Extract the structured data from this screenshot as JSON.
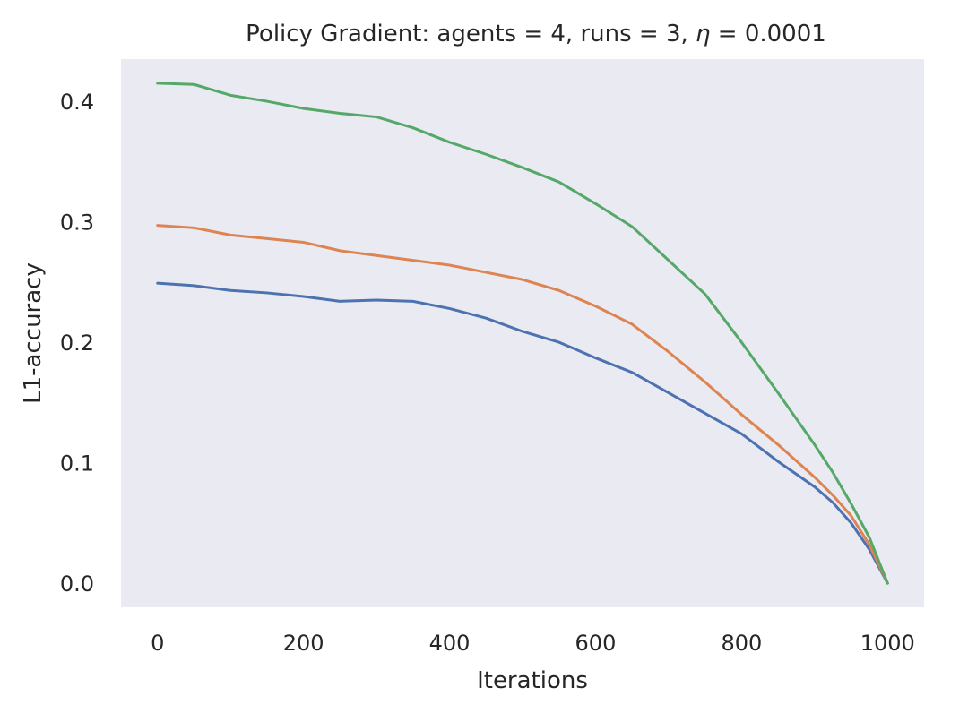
{
  "chart_data": {
    "type": "line",
    "title_parts": [
      "Policy Gradient: agents = 4, runs = 3, ",
      "η",
      " = 0.0001"
    ],
    "xlabel": "Iterations",
    "ylabel": "L1-accuracy",
    "xlim": [
      -50,
      1050
    ],
    "ylim": [
      -0.02,
      0.435
    ],
    "grid": false,
    "background": "#eaeaf2",
    "x_ticks": [
      0,
      200,
      400,
      600,
      800,
      1000
    ],
    "x_tick_labels": [
      "0",
      "200",
      "400",
      "600",
      "800",
      "1000"
    ],
    "y_ticks": [
      0.0,
      0.1,
      0.2,
      0.3,
      0.4
    ],
    "y_tick_labels": [
      "0.0",
      "0.1",
      "0.2",
      "0.3",
      "0.4"
    ],
    "series": [
      {
        "color": "#4c72b0",
        "x": [
          0,
          50,
          100,
          150,
          200,
          250,
          300,
          350,
          400,
          450,
          500,
          550,
          600,
          650,
          700,
          750,
          800,
          850,
          900,
          925,
          950,
          975,
          1000
        ],
        "values": [
          0.249,
          0.247,
          0.243,
          0.241,
          0.238,
          0.234,
          0.235,
          0.234,
          0.228,
          0.22,
          0.209,
          0.2,
          0.187,
          0.175,
          0.158,
          0.141,
          0.124,
          0.101,
          0.08,
          0.067,
          0.05,
          0.028,
          0.0
        ]
      },
      {
        "color": "#dd8452",
        "x": [
          0,
          50,
          100,
          150,
          200,
          250,
          300,
          350,
          400,
          450,
          500,
          550,
          600,
          650,
          700,
          750,
          800,
          850,
          900,
          925,
          950,
          975,
          1000
        ],
        "values": [
          0.297,
          0.295,
          0.289,
          0.286,
          0.283,
          0.276,
          0.272,
          0.268,
          0.264,
          0.258,
          0.252,
          0.243,
          0.23,
          0.215,
          0.192,
          0.167,
          0.14,
          0.115,
          0.088,
          0.073,
          0.056,
          0.032,
          0.0
        ]
      },
      {
        "color": "#55a868",
        "x": [
          0,
          50,
          100,
          150,
          200,
          250,
          300,
          350,
          400,
          450,
          500,
          550,
          600,
          650,
          700,
          750,
          800,
          850,
          900,
          925,
          950,
          975,
          1000
        ],
        "values": [
          0.415,
          0.414,
          0.405,
          0.4,
          0.394,
          0.39,
          0.387,
          0.378,
          0.366,
          0.356,
          0.345,
          0.333,
          0.315,
          0.296,
          0.268,
          0.24,
          0.2,
          0.158,
          0.115,
          0.092,
          0.066,
          0.038,
          0.0
        ]
      }
    ]
  }
}
